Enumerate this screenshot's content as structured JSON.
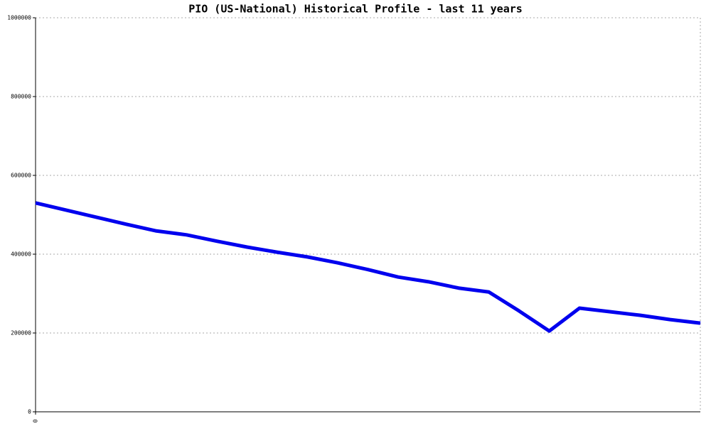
{
  "chart_data": {
    "type": "line",
    "title": "PIO (US-National) Historical Profile - last 11 years",
    "x": [
      0,
      1,
      2,
      3,
      4,
      5,
      6,
      7,
      8,
      9,
      10,
      11,
      12,
      13,
      14,
      15,
      16,
      17,
      18,
      19,
      20,
      21,
      22
    ],
    "series": [
      {
        "color": "#0000ee",
        "values": [
          530000,
          512000,
          494000,
          476000,
          459000,
          449000,
          433000,
          418000,
          405000,
          393000,
          378000,
          361000,
          342000,
          330000,
          314000,
          304000,
          256000,
          205000,
          263000,
          254000,
          245000,
          234000,
          225000
        ]
      }
    ],
    "xlim": [
      0,
      22
    ],
    "xticks": [
      0
    ],
    "ylim": [
      0,
      1000000
    ],
    "yticks": [
      0,
      200000,
      400000,
      600000,
      800000,
      1000000
    ],
    "grid": true
  }
}
